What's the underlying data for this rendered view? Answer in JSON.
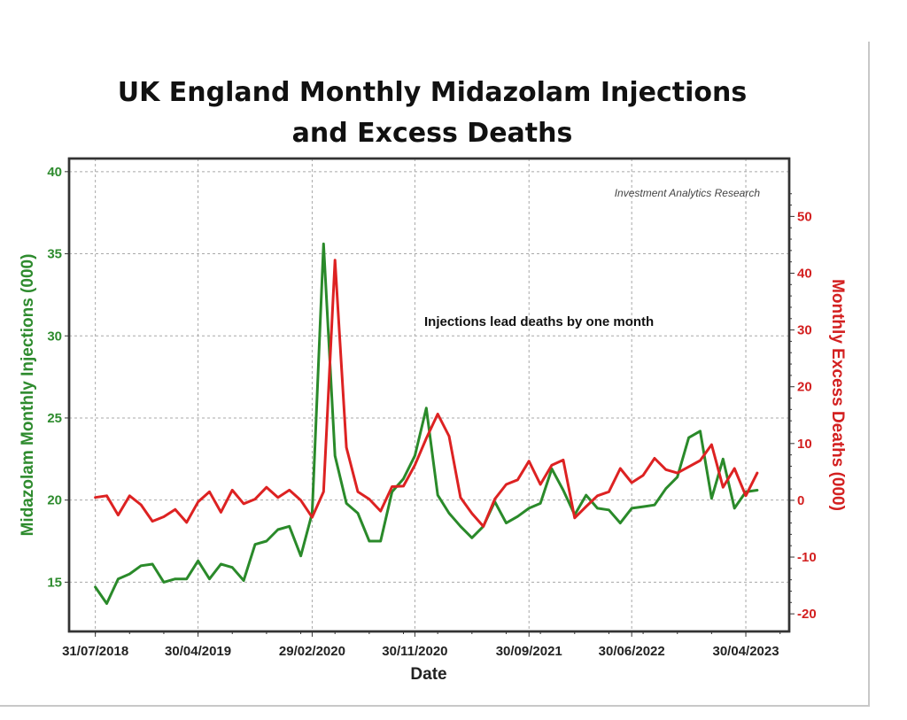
{
  "chart_data": {
    "type": "line",
    "title": [
      "UK England Monthly Midazolam Injections",
      "and Excess Deaths"
    ],
    "xlabel": "Date",
    "ylabel_left": "Midazolam Monthly Injections (000)",
    "ylabel_right": "Monthly Excess Deaths (000)",
    "annotation": "Injections lead deaths by one month",
    "credit": "Investment Analytics Research",
    "grid": true,
    "x_start": "2018-07",
    "x_ticks": [
      {
        "label": "31/07/2018",
        "month_index": 0
      },
      {
        "label": "30/04/2019",
        "month_index": 9
      },
      {
        "label": "29/02/2020",
        "month_index": 19
      },
      {
        "label": "30/11/2020",
        "month_index": 28
      },
      {
        "label": "30/09/2021",
        "month_index": 38
      },
      {
        "label": "30/06/2022",
        "month_index": 47
      },
      {
        "label": "30/04/2023",
        "month_index": 57
      }
    ],
    "xlim_months": [
      -2.3,
      60.8
    ],
    "ylim_left": [
      12.0,
      40.8
    ],
    "yticks_left": [
      15,
      20,
      25,
      30,
      35,
      40
    ],
    "ylim_right": [
      -23.1,
      60.2
    ],
    "yticks_right": [
      -20,
      -10,
      0,
      10,
      20,
      30,
      40,
      50
    ],
    "x": [
      "2018-07",
      "2018-08",
      "2018-09",
      "2018-10",
      "2018-11",
      "2018-12",
      "2019-01",
      "2019-02",
      "2019-03",
      "2019-04",
      "2019-05",
      "2019-06",
      "2019-07",
      "2019-08",
      "2019-09",
      "2019-10",
      "2019-11",
      "2019-12",
      "2020-01",
      "2020-02",
      "2020-03",
      "2020-04",
      "2020-05",
      "2020-06",
      "2020-07",
      "2020-08",
      "2020-09",
      "2020-10",
      "2020-11",
      "2020-12",
      "2021-01",
      "2021-02",
      "2021-03",
      "2021-04",
      "2021-05",
      "2021-06",
      "2021-07",
      "2021-08",
      "2021-09",
      "2021-10",
      "2021-11",
      "2021-12",
      "2022-01",
      "2022-02",
      "2022-03",
      "2022-04",
      "2022-05",
      "2022-06",
      "2022-07",
      "2022-08",
      "2022-09",
      "2022-10",
      "2022-11",
      "2022-12",
      "2023-01",
      "2023-02",
      "2023-03",
      "2023-04",
      "2023-05"
    ],
    "series": [
      {
        "name": "Midazolam Monthly Injections (000)",
        "axis": "left",
        "color": "#2a8a2a",
        "values": [
          14.7,
          13.7,
          15.2,
          15.5,
          16.0,
          16.1,
          15.0,
          15.2,
          15.2,
          16.3,
          15.2,
          16.1,
          15.9,
          15.1,
          17.3,
          17.5,
          18.2,
          18.4,
          16.6,
          19.2,
          35.6,
          22.7,
          19.8,
          19.2,
          17.5,
          17.5,
          20.5,
          21.3,
          22.7,
          25.6,
          20.3,
          19.2,
          18.4,
          17.7,
          18.4,
          19.9,
          18.6,
          19.0,
          19.5,
          19.8,
          21.9,
          20.6,
          19.1,
          20.3,
          19.5,
          19.4,
          18.6,
          19.5,
          19.6,
          19.7,
          20.7,
          21.4,
          23.8,
          24.2,
          20.1,
          22.5,
          19.5,
          20.5,
          20.6
        ]
      },
      {
        "name": "Monthly Excess Deaths (000)",
        "axis": "right",
        "color": "#dd2222",
        "values": [
          0.5,
          0.8,
          -2.6,
          0.8,
          -0.8,
          -3.7,
          -2.9,
          -1.6,
          -3.9,
          -0.3,
          1.5,
          -2.1,
          1.8,
          -0.6,
          0.2,
          2.3,
          0.5,
          1.8,
          0.0,
          -3.0,
          1.5,
          42.3,
          9.3,
          1.5,
          0.2,
          -1.9,
          2.4,
          2.5,
          6.2,
          10.9,
          15.2,
          11.3,
          0.5,
          -2.3,
          -4.6,
          0.2,
          2.8,
          3.6,
          6.9,
          2.8,
          6.2,
          7.1,
          -3.1,
          -1.1,
          0.8,
          1.5,
          5.6,
          3.1,
          4.4,
          7.4,
          5.4,
          4.8,
          5.9,
          7.0,
          9.8,
          2.3,
          5.6,
          0.8,
          4.8
        ]
      }
    ]
  }
}
